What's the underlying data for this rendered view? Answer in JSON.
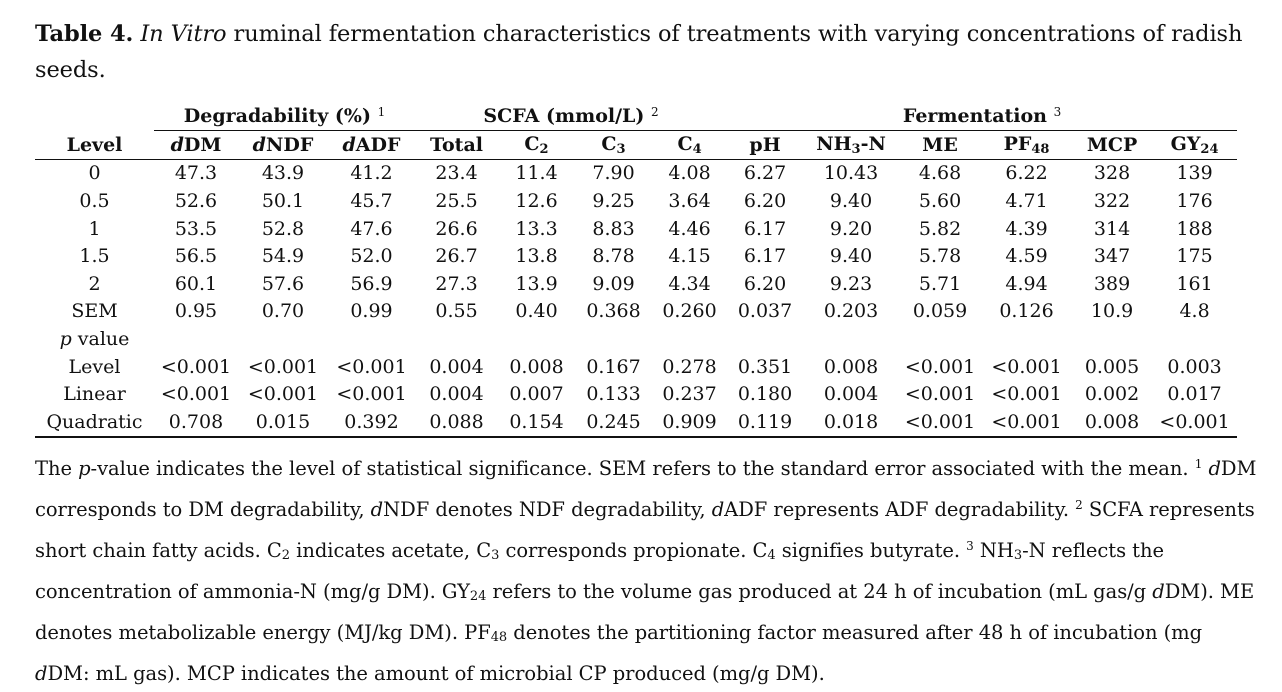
{
  "caption": {
    "label": "Table 4.",
    "italic": "In Vitro",
    "rest": " ruminal fermentation characteristics of treatments with varying concentrations of radish seeds."
  },
  "groups": {
    "degradability": "Degradability (%)",
    "degradability_note": "1",
    "scfa": "SCFA (mmol/L)",
    "scfa_note": "2",
    "fermentation": "Fermentation",
    "fermentation_note": "3"
  },
  "headers": {
    "level": "Level",
    "ddm_d": "d",
    "ddm": "DM",
    "dndf_d": "d",
    "dndf": "NDF",
    "dadf_d": "d",
    "dadf": "ADF",
    "total": "Total",
    "c2": "C",
    "c2_sub": "2",
    "c3": "C",
    "c3_sub": "3",
    "c4": "C",
    "c4_sub": "4",
    "ph": "pH",
    "nh3_a": "NH",
    "nh3_sub": "3",
    "nh3_b": "-N",
    "me": "ME",
    "pf": "PF",
    "pf_sub": "48",
    "mcp": "MCP",
    "gy": "GY",
    "gy_sub": "24"
  },
  "rows": [
    {
      "label": "0",
      "values": [
        "47.3",
        "43.9",
        "41.2",
        "23.4",
        "11.4",
        "7.90",
        "4.08",
        "6.27",
        "10.43",
        "4.68",
        "6.22",
        "328",
        "139"
      ]
    },
    {
      "label": "0.5",
      "values": [
        "52.6",
        "50.1",
        "45.7",
        "25.5",
        "12.6",
        "9.25",
        "3.64",
        "6.20",
        "9.40",
        "5.60",
        "4.71",
        "322",
        "176"
      ]
    },
    {
      "label": "1",
      "values": [
        "53.5",
        "52.8",
        "47.6",
        "26.6",
        "13.3",
        "8.83",
        "4.46",
        "6.17",
        "9.20",
        "5.82",
        "4.39",
        "314",
        "188"
      ]
    },
    {
      "label": "1.5",
      "values": [
        "56.5",
        "54.9",
        "52.0",
        "26.7",
        "13.8",
        "8.78",
        "4.15",
        "6.17",
        "9.40",
        "5.78",
        "4.59",
        "347",
        "175"
      ]
    },
    {
      "label": "2",
      "values": [
        "60.1",
        "57.6",
        "56.9",
        "27.3",
        "13.9",
        "9.09",
        "4.34",
        "6.20",
        "9.23",
        "5.71",
        "4.94",
        "389",
        "161"
      ]
    },
    {
      "label": "SEM",
      "values": [
        "0.95",
        "0.70",
        "0.99",
        "0.55",
        "0.40",
        "0.368",
        "0.260",
        "0.037",
        "0.203",
        "0.059",
        "0.126",
        "10.9",
        "4.8"
      ]
    }
  ],
  "pvalue_label": {
    "p": "p",
    "rest": " value"
  },
  "prows": [
    {
      "label": "Level",
      "values": [
        "<0.001",
        "<0.001",
        "<0.001",
        "0.004",
        "0.008",
        "0.167",
        "0.278",
        "0.351",
        "0.008",
        "<0.001",
        "<0.001",
        "0.005",
        "0.003"
      ]
    },
    {
      "label": "Linear",
      "values": [
        "<0.001",
        "<0.001",
        "<0.001",
        "0.004",
        "0.007",
        "0.133",
        "0.237",
        "0.180",
        "0.004",
        "<0.001",
        "<0.001",
        "0.002",
        "0.017"
      ]
    },
    {
      "label": "Quadratic",
      "values": [
        "0.708",
        "0.015",
        "0.392",
        "0.088",
        "0.154",
        "0.245",
        "0.909",
        "0.119",
        "0.018",
        "<0.001",
        "<0.001",
        "0.008",
        "<0.001"
      ]
    }
  ],
  "footnote": {
    "f1": "The ",
    "f2": "p",
    "f3": "-value indicates the level of statistical significance. SEM refers to the standard error associated with the mean. ",
    "n1": "1",
    "f4": " ",
    "f5": "d",
    "f6": "DM corresponds to DM degradability, ",
    "f7": "d",
    "f8": "NDF denotes NDF degradability, ",
    "f9": "d",
    "f10": "ADF represents ADF degradability. ",
    "n2": "2",
    "f11": " SCFA represents short chain fatty acids. C",
    "s2": "2",
    "f12": " indicates acetate, C",
    "s3": "3",
    "f13": " corresponds propionate. C",
    "s4": "4",
    "f14": " signifies butyrate. ",
    "n3": "3",
    "f15": " NH",
    "s5": "3",
    "f16": "-N reflects the concentration of ammonia-N (mg/g DM). GY",
    "s6": "24",
    "f17": " refers to the volume gas produced at 24 h of incubation (mL gas/g ",
    "f18": "d",
    "f19": "DM). ME denotes metabolizable energy (MJ/kg DM). PF",
    "s7": "48",
    "f20": " denotes the partitioning factor measured after 48 h of incubation (mg ",
    "f21": "d",
    "f22": "DM: mL gas). MCP indicates the amount of microbial CP produced (mg/g DM)."
  }
}
